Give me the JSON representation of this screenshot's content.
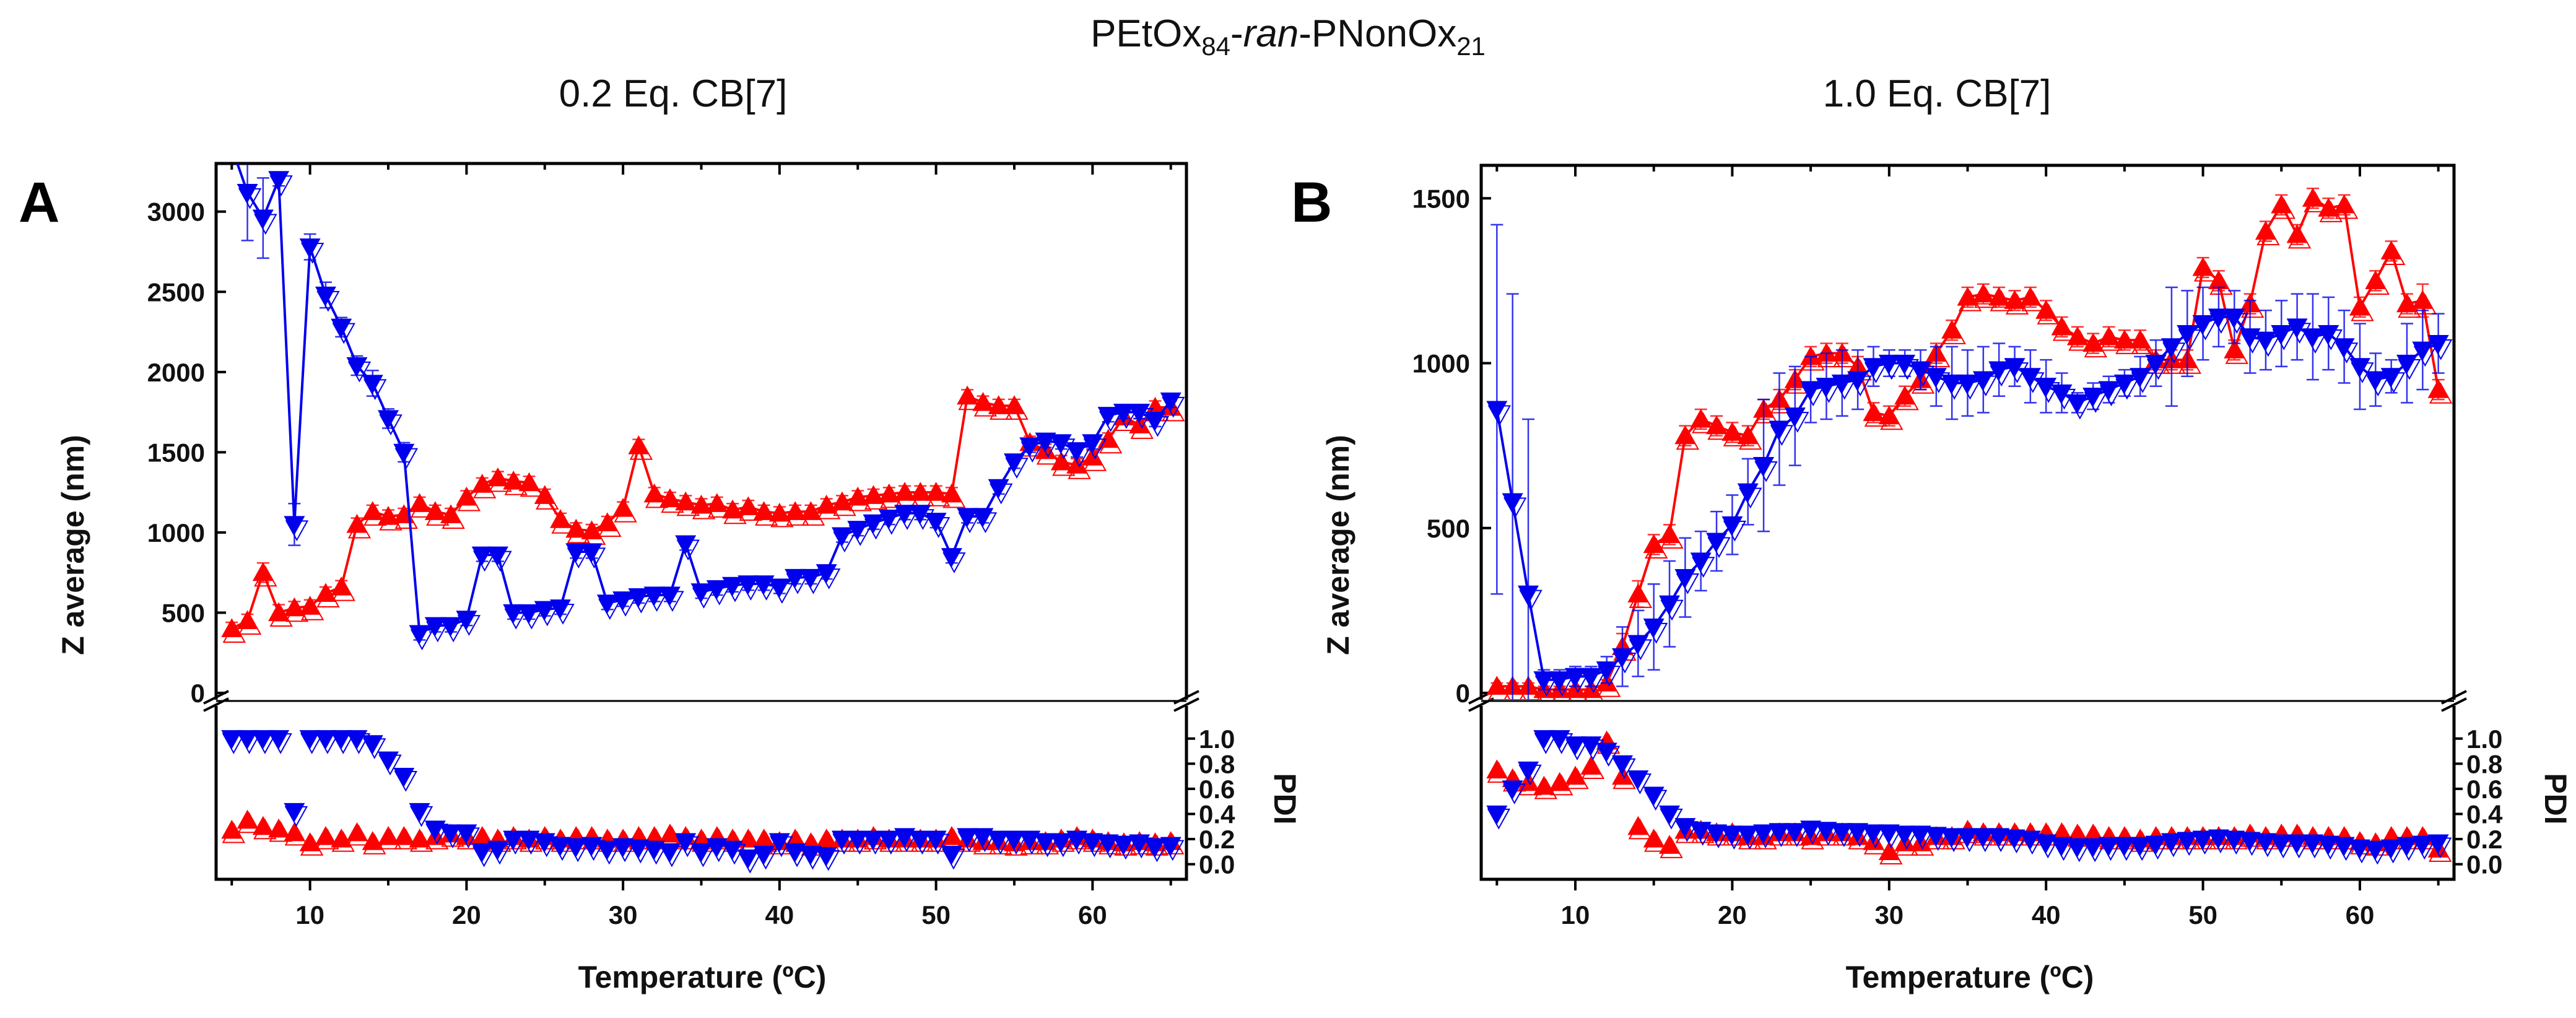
{
  "figure": {
    "title_main": "PEtOx",
    "title_sub1": "84",
    "title_mid": "-",
    "title_italic": "ran",
    "title_mid2": "-PNonOx",
    "title_sub2": "21",
    "colors": {
      "red": "#ff0000",
      "blue": "#0000ee",
      "axis": "#000000"
    }
  },
  "chart_data": [
    {
      "type": "scatter",
      "panel_label": "A",
      "title": "0.2 Eq. CB[7]",
      "xlabel": "Temperature (ºC)",
      "ylabel": "Z average (nm)",
      "y2label": "PDI",
      "xlim": [
        4,
        66
      ],
      "ylim": [
        0,
        3300
      ],
      "y2lim": [
        -0.12,
        1.26
      ],
      "xticks": [
        10,
        20,
        30,
        40,
        50,
        60
      ],
      "yticks": [
        0,
        500,
        1000,
        1500,
        2000,
        2500,
        3000
      ],
      "y2ticks": [
        "0.0",
        "0.2",
        "0.4",
        "0.6",
        "0.8",
        "1.0"
      ],
      "x": [
        5,
        6,
        7,
        8,
        9,
        10,
        11,
        12,
        13,
        14,
        15,
        16,
        17,
        18,
        19,
        20,
        21,
        22,
        23,
        24,
        25,
        26,
        27,
        28,
        29,
        30,
        31,
        32,
        33,
        34,
        35,
        36,
        37,
        38,
        39,
        40,
        41,
        42,
        43,
        44,
        45,
        46,
        47,
        48,
        49,
        50,
        51,
        52,
        53,
        54,
        55,
        56,
        57,
        58,
        59,
        60,
        61,
        62,
        63,
        64,
        65
      ],
      "series": [
        {
          "name": "red",
          "marker": "triangle-up",
          "color": "#ff0000",
          "z": [
            400,
            450,
            750,
            500,
            530,
            540,
            620,
            660,
            1050,
            1130,
            1100,
            1110,
            1180,
            1130,
            1110,
            1220,
            1300,
            1340,
            1320,
            1310,
            1230,
            1080,
            1020,
            1010,
            1060,
            1150,
            1540,
            1240,
            1210,
            1190,
            1170,
            1180,
            1140,
            1160,
            1130,
            1120,
            1130,
            1130,
            1170,
            1190,
            1220,
            1230,
            1240,
            1250,
            1250,
            1250,
            1240,
            1850,
            1810,
            1790,
            1790,
            1560,
            1510,
            1440,
            1420,
            1470,
            1580,
            1720,
            1670,
            1780,
            1780
          ],
          "z_err": [
            40,
            40,
            60,
            50,
            40,
            40,
            40,
            40,
            40,
            40,
            40,
            40,
            40,
            40,
            40,
            40,
            40,
            40,
            40,
            40,
            40,
            40,
            40,
            40,
            40,
            40,
            40,
            40,
            40,
            40,
            40,
            40,
            40,
            40,
            40,
            40,
            40,
            40,
            40,
            40,
            40,
            40,
            40,
            40,
            40,
            40,
            40,
            40,
            40,
            40,
            40,
            40,
            40,
            40,
            40,
            40,
            40,
            40,
            40,
            40,
            40
          ],
          "pdi": [
            0.27,
            0.35,
            0.3,
            0.28,
            0.25,
            0.17,
            0.22,
            0.2,
            0.25,
            0.18,
            0.22,
            0.22,
            0.2,
            0.22,
            0.24,
            0.22,
            0.22,
            0.2,
            0.22,
            0.2,
            0.22,
            0.2,
            0.22,
            0.22,
            0.2,
            0.2,
            0.22,
            0.22,
            0.24,
            0.22,
            0.2,
            0.22,
            0.2,
            0.2,
            0.2,
            0.18,
            0.2,
            0.17,
            0.2,
            0.2,
            0.2,
            0.22,
            0.2,
            0.2,
            0.2,
            0.2,
            0.22,
            0.2,
            0.18,
            0.18,
            0.17,
            0.18,
            0.18,
            0.2,
            0.22,
            0.2,
            0.18,
            0.17,
            0.18,
            0.17,
            0.18
          ]
        },
        {
          "name": "blue",
          "marker": "triangle-down",
          "color": "#0000ee",
          "z": [
            3400,
            3120,
            2960,
            3200,
            1050,
            2780,
            2480,
            2280,
            2040,
            1930,
            1710,
            1500,
            370,
            420,
            420,
            460,
            860,
            860,
            500,
            500,
            520,
            530,
            880,
            880,
            560,
            580,
            600,
            610,
            610,
            930,
            630,
            650,
            670,
            680,
            680,
            660,
            720,
            720,
            750,
            980,
            1020,
            1060,
            1090,
            1120,
            1120,
            1070,
            850,
            1100,
            1100,
            1280,
            1440,
            1540,
            1570,
            1560,
            1510,
            1560,
            1730,
            1750,
            1750,
            1700,
            1820
          ],
          "z_err": [
            0,
            300,
            250,
            40,
            130,
            80,
            80,
            60,
            60,
            80,
            60,
            60,
            40,
            40,
            40,
            40,
            40,
            40,
            40,
            40,
            40,
            40,
            40,
            40,
            40,
            40,
            40,
            40,
            40,
            40,
            40,
            40,
            40,
            40,
            40,
            40,
            40,
            40,
            40,
            40,
            40,
            40,
            40,
            40,
            40,
            40,
            40,
            40,
            40,
            40,
            40,
            40,
            40,
            40,
            40,
            40,
            40,
            40,
            40,
            40,
            40
          ],
          "pdi": [
            1.0,
            1.0,
            1.0,
            1.0,
            0.42,
            1.0,
            1.0,
            1.0,
            1.0,
            0.96,
            0.83,
            0.7,
            0.42,
            0.28,
            0.25,
            0.25,
            0.1,
            0.12,
            0.2,
            0.2,
            0.18,
            0.15,
            0.14,
            0.15,
            0.12,
            0.14,
            0.13,
            0.12,
            0.1,
            0.18,
            0.1,
            0.14,
            0.12,
            0.05,
            0.08,
            0.18,
            0.1,
            0.08,
            0.07,
            0.2,
            0.2,
            0.2,
            0.2,
            0.22,
            0.2,
            0.2,
            0.08,
            0.22,
            0.22,
            0.2,
            0.2,
            0.2,
            0.18,
            0.18,
            0.2,
            0.18,
            0.17,
            0.16,
            0.17,
            0.14,
            0.15
          ]
        }
      ]
    },
    {
      "type": "scatter",
      "panel_label": "B",
      "title": "1.0 Eq. CB[7]",
      "xlabel": "Temperature (ºC)",
      "ylabel": "Z average (nm)",
      "y2label": "PDI",
      "xlim": [
        4,
        66
      ],
      "ylim": [
        0,
        1600
      ],
      "y2lim": [
        -0.12,
        1.26
      ],
      "xticks": [
        10,
        20,
        30,
        40,
        50,
        60
      ],
      "yticks": [
        0,
        500,
        1000,
        1500
      ],
      "y2ticks": [
        "0.0",
        "0.2",
        "0.4",
        "0.6",
        "0.8",
        "1.0"
      ],
      "x": [
        5,
        6,
        7,
        8,
        9,
        10,
        11,
        12,
        13,
        14,
        15,
        16,
        17,
        18,
        19,
        20,
        21,
        22,
        23,
        24,
        25,
        26,
        27,
        28,
        29,
        30,
        31,
        32,
        33,
        34,
        35,
        36,
        37,
        38,
        39,
        40,
        41,
        42,
        43,
        44,
        45,
        46,
        47,
        48,
        49,
        50,
        51,
        52,
        53,
        54,
        55,
        56,
        57,
        58,
        59,
        60,
        61,
        62,
        63,
        64,
        65
      ],
      "series": [
        {
          "name": "red",
          "marker": "triangle-up",
          "color": "#ff0000",
          "z": [
            20,
            20,
            20,
            10,
            10,
            10,
            10,
            30,
            140,
            300,
            450,
            480,
            780,
            830,
            810,
            790,
            780,
            860,
            890,
            950,
            1020,
            1030,
            1030,
            990,
            850,
            840,
            900,
            950,
            1030,
            1100,
            1200,
            1210,
            1200,
            1190,
            1200,
            1160,
            1110,
            1080,
            1060,
            1080,
            1070,
            1070,
            1010,
            1010,
            1010,
            1290,
            1250,
            1040,
            1180,
            1400,
            1480,
            1390,
            1500,
            1470,
            1480,
            1170,
            1250,
            1340,
            1180,
            1190,
            920
          ],
          "z_err": [
            10,
            10,
            10,
            10,
            10,
            10,
            10,
            10,
            40,
            40,
            30,
            30,
            30,
            30,
            30,
            30,
            30,
            30,
            30,
            30,
            30,
            30,
            30,
            30,
            30,
            30,
            30,
            30,
            30,
            30,
            30,
            30,
            30,
            30,
            30,
            30,
            30,
            30,
            30,
            30,
            30,
            30,
            30,
            30,
            30,
            30,
            30,
            30,
            30,
            30,
            30,
            30,
            30,
            30,
            30,
            30,
            30,
            30,
            30,
            50,
            30
          ],
          "pdi": [
            0.75,
            0.68,
            0.65,
            0.62,
            0.65,
            0.7,
            0.78,
            0.98,
            0.7,
            0.3,
            0.2,
            0.15,
            0.27,
            0.27,
            0.25,
            0.25,
            0.22,
            0.22,
            0.25,
            0.25,
            0.22,
            0.25,
            0.25,
            0.22,
            0.18,
            0.1,
            0.17,
            0.17,
            0.22,
            0.22,
            0.27,
            0.25,
            0.25,
            0.25,
            0.25,
            0.25,
            0.25,
            0.24,
            0.24,
            0.22,
            0.22,
            0.2,
            0.22,
            0.22,
            0.22,
            0.22,
            0.22,
            0.22,
            0.24,
            0.22,
            0.24,
            0.24,
            0.22,
            0.22,
            0.22,
            0.18,
            0.17,
            0.22,
            0.22,
            0.22,
            0.12
          ]
        },
        {
          "name": "blue",
          "marker": "triangle-down",
          "color": "#0000ee",
          "z": [
            860,
            580,
            300,
            40,
            40,
            50,
            50,
            70,
            110,
            150,
            200,
            270,
            350,
            400,
            460,
            510,
            610,
            690,
            800,
            840,
            920,
            930,
            940,
            950,
            990,
            1000,
            1000,
            980,
            960,
            940,
            940,
            950,
            980,
            990,
            960,
            930,
            910,
            880,
            900,
            920,
            940,
            960,
            1000,
            1050,
            1090,
            1120,
            1140,
            1140,
            1080,
            1070,
            1090,
            1110,
            1080,
            1090,
            1050,
            990,
            950,
            960,
            1000,
            1040,
            1060
          ],
          "z_err": [
            560,
            630,
            530,
            30,
            30,
            30,
            30,
            40,
            90,
            100,
            130,
            130,
            120,
            90,
            90,
            90,
            100,
            200,
            170,
            150,
            100,
            100,
            100,
            90,
            60,
            40,
            40,
            60,
            90,
            110,
            100,
            100,
            80,
            60,
            80,
            80,
            60,
            30,
            40,
            40,
            40,
            60,
            70,
            180,
            130,
            110,
            90,
            80,
            110,
            90,
            100,
            100,
            130,
            110,
            110,
            130,
            80,
            50,
            120,
            120,
            90
          ],
          "pdi": [
            0.4,
            0.6,
            0.75,
            1.0,
            1.0,
            0.95,
            0.95,
            0.9,
            0.8,
            0.68,
            0.55,
            0.4,
            0.3,
            0.27,
            0.25,
            0.24,
            0.24,
            0.25,
            0.26,
            0.26,
            0.28,
            0.27,
            0.26,
            0.26,
            0.25,
            0.25,
            0.24,
            0.24,
            0.23,
            0.22,
            0.22,
            0.22,
            0.22,
            0.21,
            0.2,
            0.17,
            0.15,
            0.14,
            0.14,
            0.15,
            0.15,
            0.15,
            0.16,
            0.18,
            0.19,
            0.2,
            0.21,
            0.2,
            0.19,
            0.18,
            0.17,
            0.17,
            0.17,
            0.16,
            0.15,
            0.13,
            0.12,
            0.13,
            0.15,
            0.16,
            0.17
          ]
        }
      ]
    }
  ]
}
